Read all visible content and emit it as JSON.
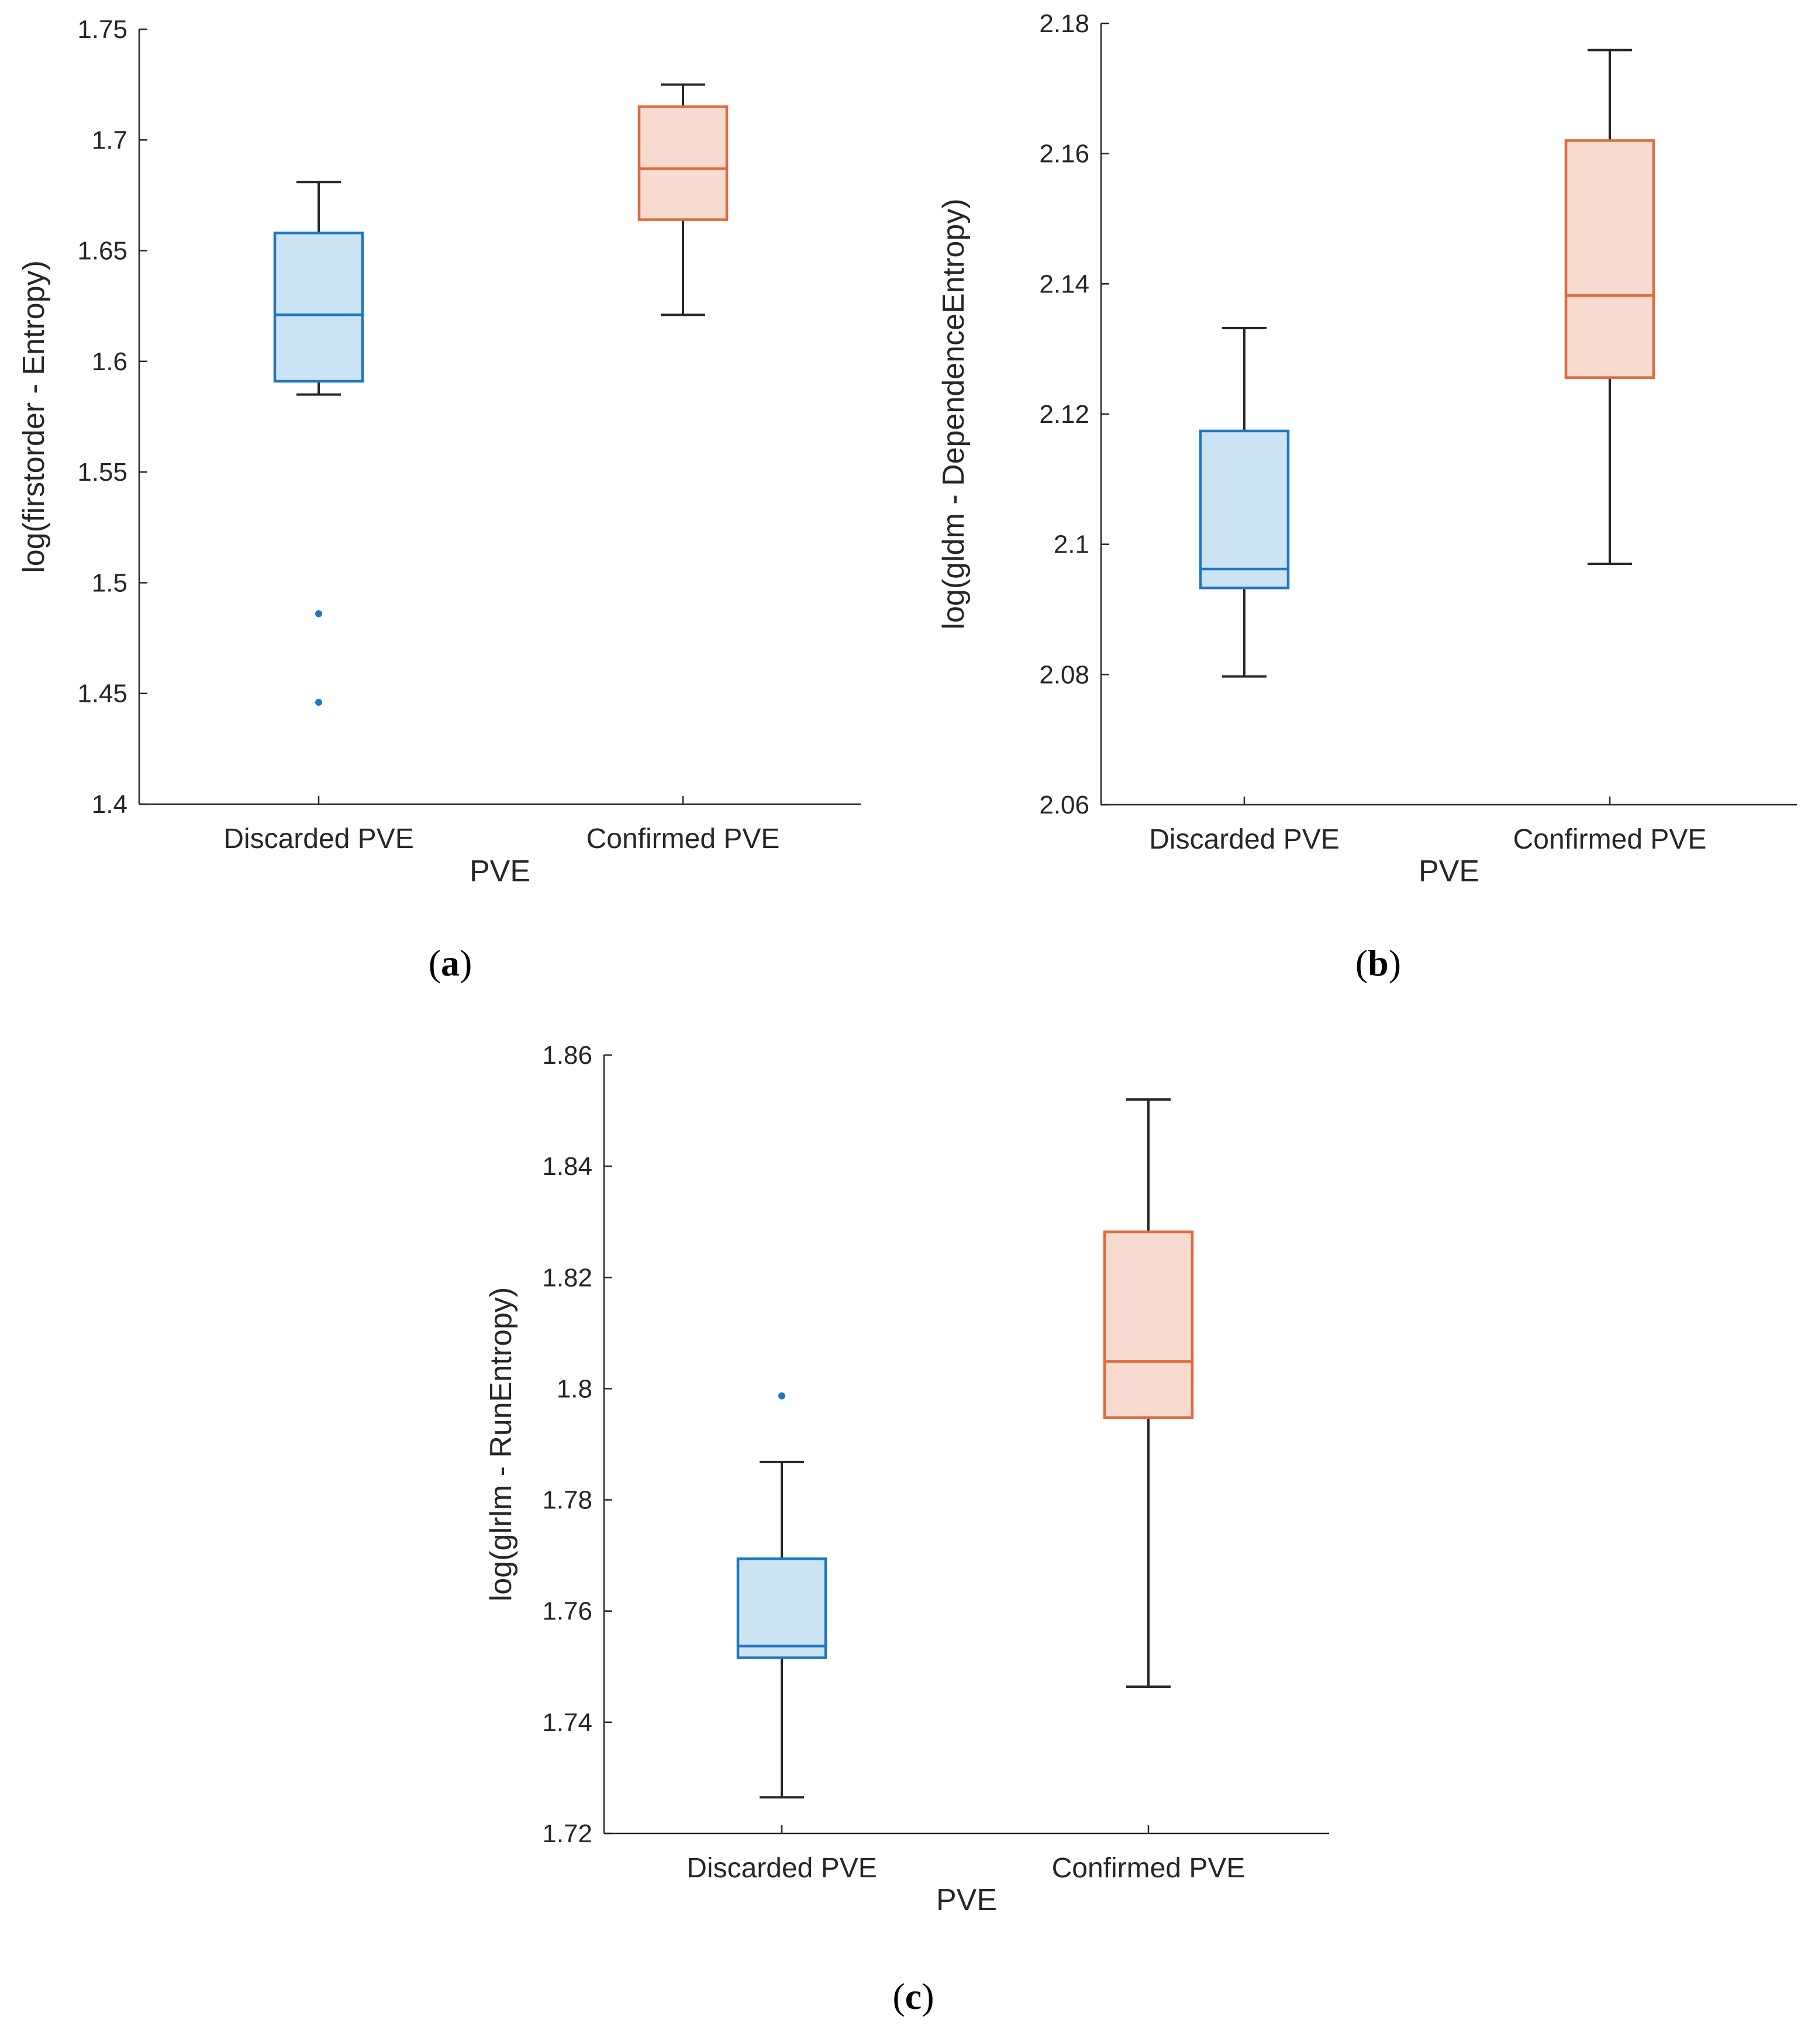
{
  "chart_data": [
    {
      "type": "box",
      "panel_label": "a",
      "xlabel": "PVE",
      "ylabel": "log(firstorder - Entropy)",
      "ylim": [
        1.4,
        1.75
      ],
      "yticks": [
        "1.4",
        "1.45",
        "1.5",
        "1.55",
        "1.6",
        "1.65",
        "1.7",
        "1.75"
      ],
      "categories": [
        "Discarded PVE",
        "Confirmed PVE"
      ],
      "boxes": [
        {
          "name": "Discarded PVE",
          "whisker_low": 1.585,
          "q1": 1.591,
          "median": 1.621,
          "q3": 1.658,
          "whisker_high": 1.681,
          "outliers": [
            1.486,
            1.446
          ],
          "color": "#1f77c4",
          "fill": "#cce3f3"
        },
        {
          "name": "Confirmed PVE",
          "whisker_low": 1.621,
          "q1": 1.664,
          "median": 1.687,
          "q3": 1.715,
          "whisker_high": 1.725,
          "outliers": [],
          "color": "#e06a3b",
          "fill": "#f7dbd0"
        }
      ]
    },
    {
      "type": "box",
      "panel_label": "b",
      "xlabel": "PVE",
      "ylabel": "log(gldm - DependenceEntropy)",
      "ylim": [
        2.06,
        2.18
      ],
      "yticks": [
        "2.06",
        "2.08",
        "2.1",
        "2.12",
        "2.14",
        "2.16",
        "2.18"
      ],
      "categories": [
        "Discarded PVE",
        "Confirmed PVE"
      ],
      "boxes": [
        {
          "name": "Discarded PVE",
          "whisker_low": 2.0797,
          "q1": 2.0933,
          "median": 2.0962,
          "q3": 2.1174,
          "whisker_high": 2.1332,
          "outliers": [],
          "color": "#1f77c4",
          "fill": "#cce3f3"
        },
        {
          "name": "Confirmed PVE",
          "whisker_low": 2.097,
          "q1": 2.1256,
          "median": 2.1382,
          "q3": 2.162,
          "whisker_high": 2.1759,
          "outliers": [],
          "color": "#e06a3b",
          "fill": "#f7dbd0"
        }
      ]
    },
    {
      "type": "box",
      "panel_label": "c",
      "xlabel": "PVE",
      "ylabel": "log(glrlm - RunEntropy)",
      "ylim": [
        1.72,
        1.86
      ],
      "yticks": [
        "1.72",
        "1.74",
        "1.76",
        "1.78",
        "1.8",
        "1.82",
        "1.84",
        "1.86"
      ],
      "categories": [
        "Discarded PVE",
        "Confirmed PVE"
      ],
      "boxes": [
        {
          "name": "Discarded PVE",
          "whisker_low": 1.7265,
          "q1": 1.7516,
          "median": 1.7537,
          "q3": 1.7694,
          "whisker_high": 1.7868,
          "outliers": [
            1.7987
          ],
          "color": "#1f77c4",
          "fill": "#cce3f3"
        },
        {
          "name": "Confirmed PVE",
          "whisker_low": 1.7464,
          "q1": 1.7948,
          "median": 1.8049,
          "q3": 1.8282,
          "whisker_high": 1.852,
          "outliers": [],
          "color": "#e06a3b",
          "fill": "#f7dbd0"
        }
      ]
    }
  ]
}
